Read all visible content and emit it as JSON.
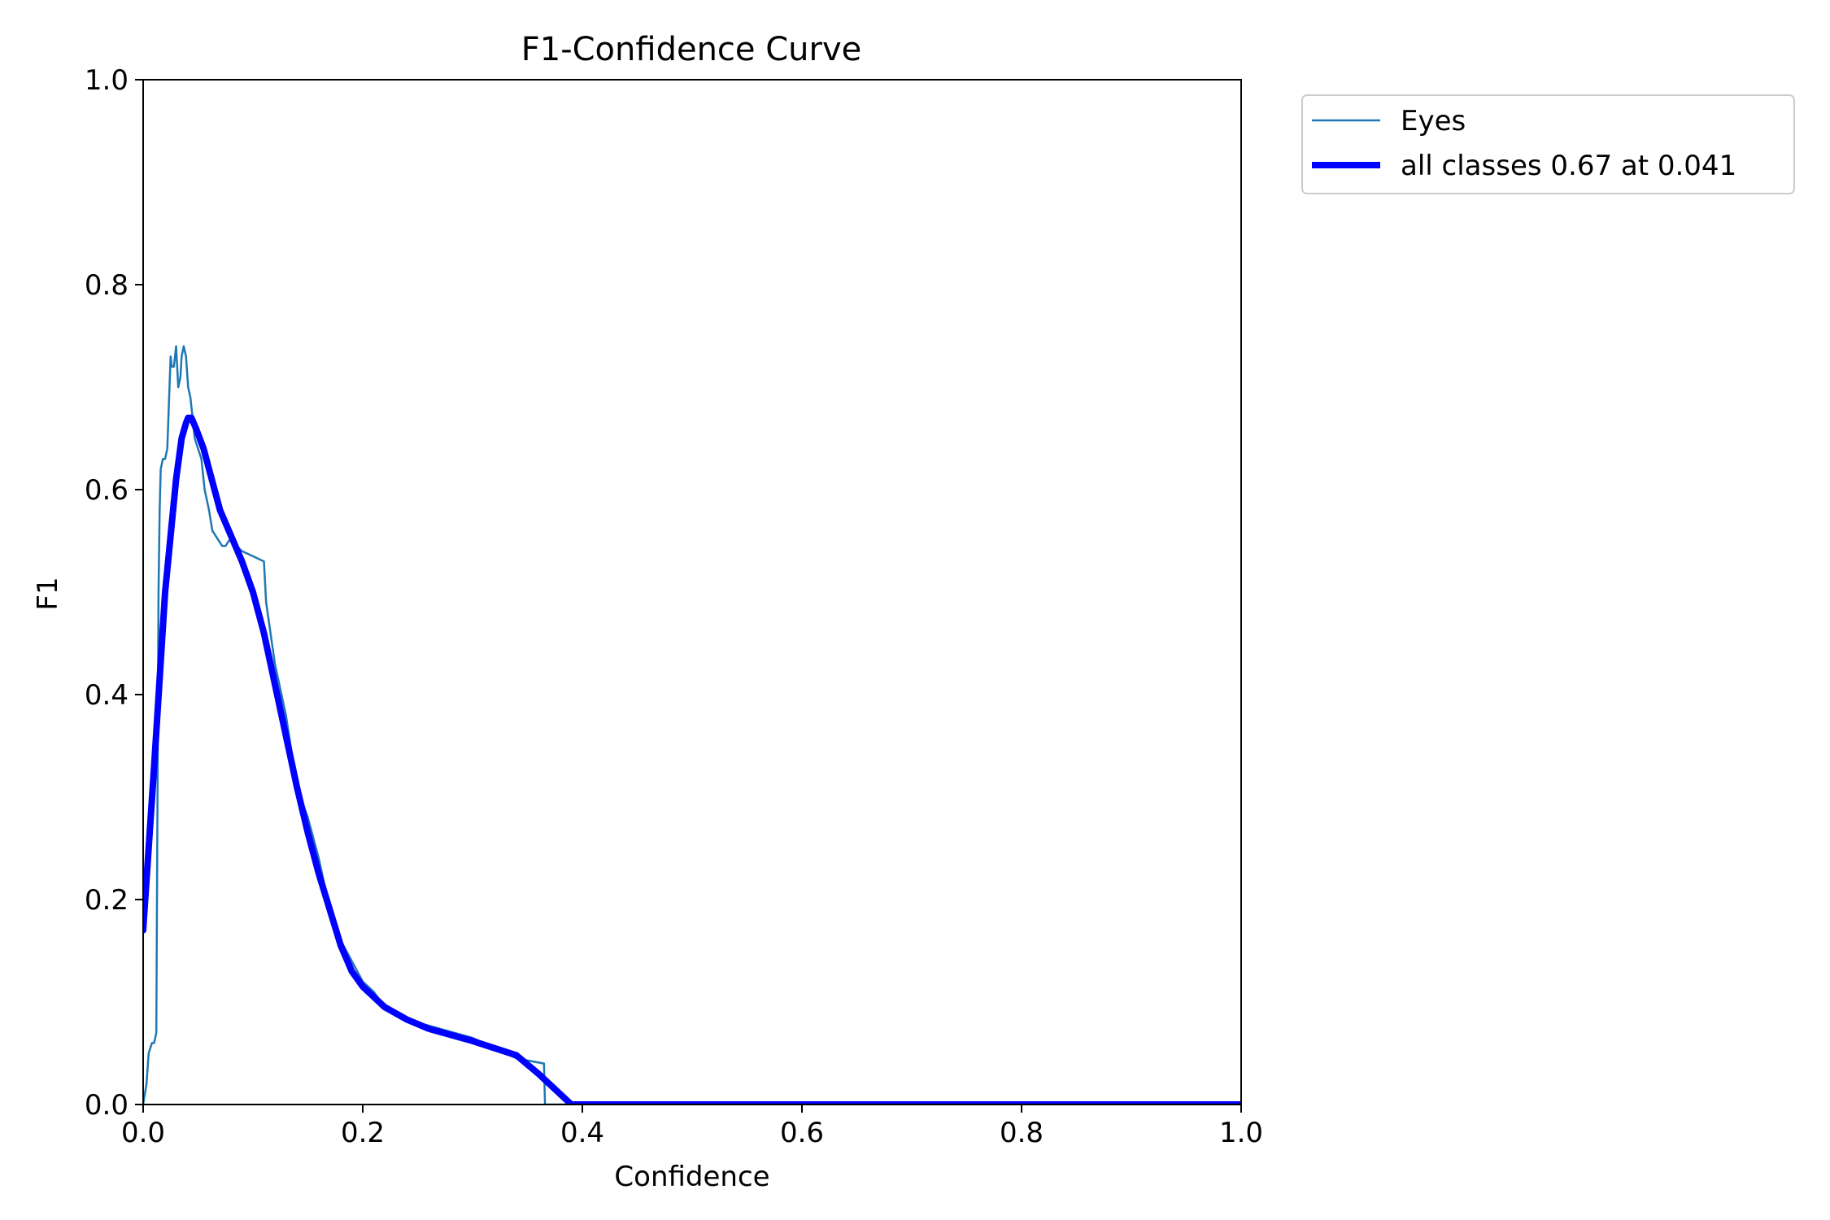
{
  "chart_data": {
    "type": "line",
    "title": "F1-Confidence Curve",
    "xlabel": "Confidence",
    "ylabel": "F1",
    "xlim": [
      0.0,
      1.0
    ],
    "ylim": [
      0.0,
      1.0
    ],
    "xticks": [
      0.0,
      0.2,
      0.4,
      0.6,
      0.8,
      1.0
    ],
    "xtick_labels": [
      "0.0",
      "0.2",
      "0.4",
      "0.6",
      "0.8",
      "1.0"
    ],
    "yticks": [
      0.0,
      0.2,
      0.4,
      0.6,
      0.8,
      1.0
    ],
    "ytick_labels": [
      "0.0",
      "0.2",
      "0.4",
      "0.6",
      "0.8",
      "1.0"
    ],
    "grid": false,
    "legend_position": "outside-top-right",
    "series": [
      {
        "name": "Eyes",
        "color": "#1f77b4",
        "line": "thin",
        "x": [
          0.0,
          0.003,
          0.005,
          0.008,
          0.01,
          0.012,
          0.014,
          0.015,
          0.016,
          0.018,
          0.02,
          0.022,
          0.024,
          0.025,
          0.026,
          0.028,
          0.029,
          0.03,
          0.032,
          0.034,
          0.035,
          0.037,
          0.039,
          0.041,
          0.043,
          0.045,
          0.047,
          0.05,
          0.053,
          0.056,
          0.06,
          0.063,
          0.066,
          0.069,
          0.072,
          0.075,
          0.078,
          0.08,
          0.085,
          0.09,
          0.1,
          0.11,
          0.112,
          0.12,
          0.13,
          0.14,
          0.15,
          0.16,
          0.17,
          0.18,
          0.19,
          0.2,
          0.21,
          0.22,
          0.25,
          0.3,
          0.34,
          0.365,
          0.366,
          0.4,
          1.0
        ],
        "y": [
          0.0,
          0.02,
          0.05,
          0.06,
          0.06,
          0.07,
          0.5,
          0.58,
          0.62,
          0.63,
          0.63,
          0.64,
          0.7,
          0.73,
          0.72,
          0.72,
          0.73,
          0.74,
          0.7,
          0.71,
          0.73,
          0.74,
          0.73,
          0.7,
          0.69,
          0.67,
          0.65,
          0.64,
          0.63,
          0.6,
          0.58,
          0.56,
          0.555,
          0.55,
          0.545,
          0.545,
          0.55,
          0.55,
          0.545,
          0.54,
          0.535,
          0.53,
          0.49,
          0.43,
          0.38,
          0.31,
          0.28,
          0.24,
          0.19,
          0.16,
          0.14,
          0.12,
          0.11,
          0.095,
          0.08,
          0.065,
          0.045,
          0.04,
          0.0,
          0.0,
          0.0
        ]
      },
      {
        "name": "all classes 0.67 at 0.041",
        "color": "#0000ff",
        "line": "thick",
        "x": [
          0.0,
          0.01,
          0.02,
          0.03,
          0.035,
          0.039,
          0.041,
          0.044,
          0.048,
          0.055,
          0.06,
          0.07,
          0.08,
          0.09,
          0.1,
          0.11,
          0.12,
          0.13,
          0.14,
          0.15,
          0.16,
          0.17,
          0.18,
          0.19,
          0.2,
          0.22,
          0.24,
          0.26,
          0.3,
          0.34,
          0.36,
          0.39,
          0.5,
          0.6,
          0.8,
          1.0
        ],
        "y": [
          0.17,
          0.33,
          0.5,
          0.61,
          0.65,
          0.665,
          0.67,
          0.67,
          0.66,
          0.64,
          0.62,
          0.58,
          0.555,
          0.53,
          0.5,
          0.46,
          0.41,
          0.36,
          0.31,
          0.265,
          0.225,
          0.19,
          0.155,
          0.13,
          0.115,
          0.095,
          0.083,
          0.074,
          0.062,
          0.048,
          0.03,
          0.0,
          0.0,
          0.0,
          0.0,
          0.0
        ]
      }
    ]
  }
}
